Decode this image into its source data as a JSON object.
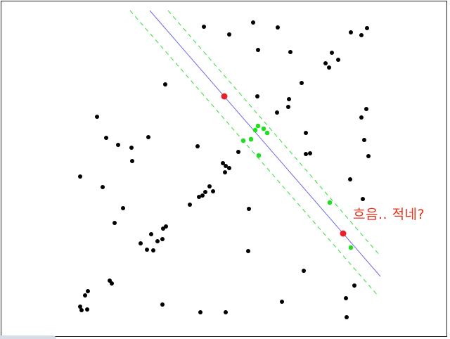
{
  "annotation": {
    "text": "흐음.. 적네?"
  },
  "colors": {
    "background": "#ffffff",
    "frame": "#222222",
    "line": "#6a6ae8",
    "band": "#33dd33",
    "black_point": "#000000",
    "inlier_point": "#22dd22",
    "sample_point": "#e8202a",
    "annotation": "#e8321e"
  },
  "diagram": {
    "type": "ransac-line-fit",
    "point_groups": [
      "black-points",
      "inlier-points",
      "sample-points"
    ]
  }
}
